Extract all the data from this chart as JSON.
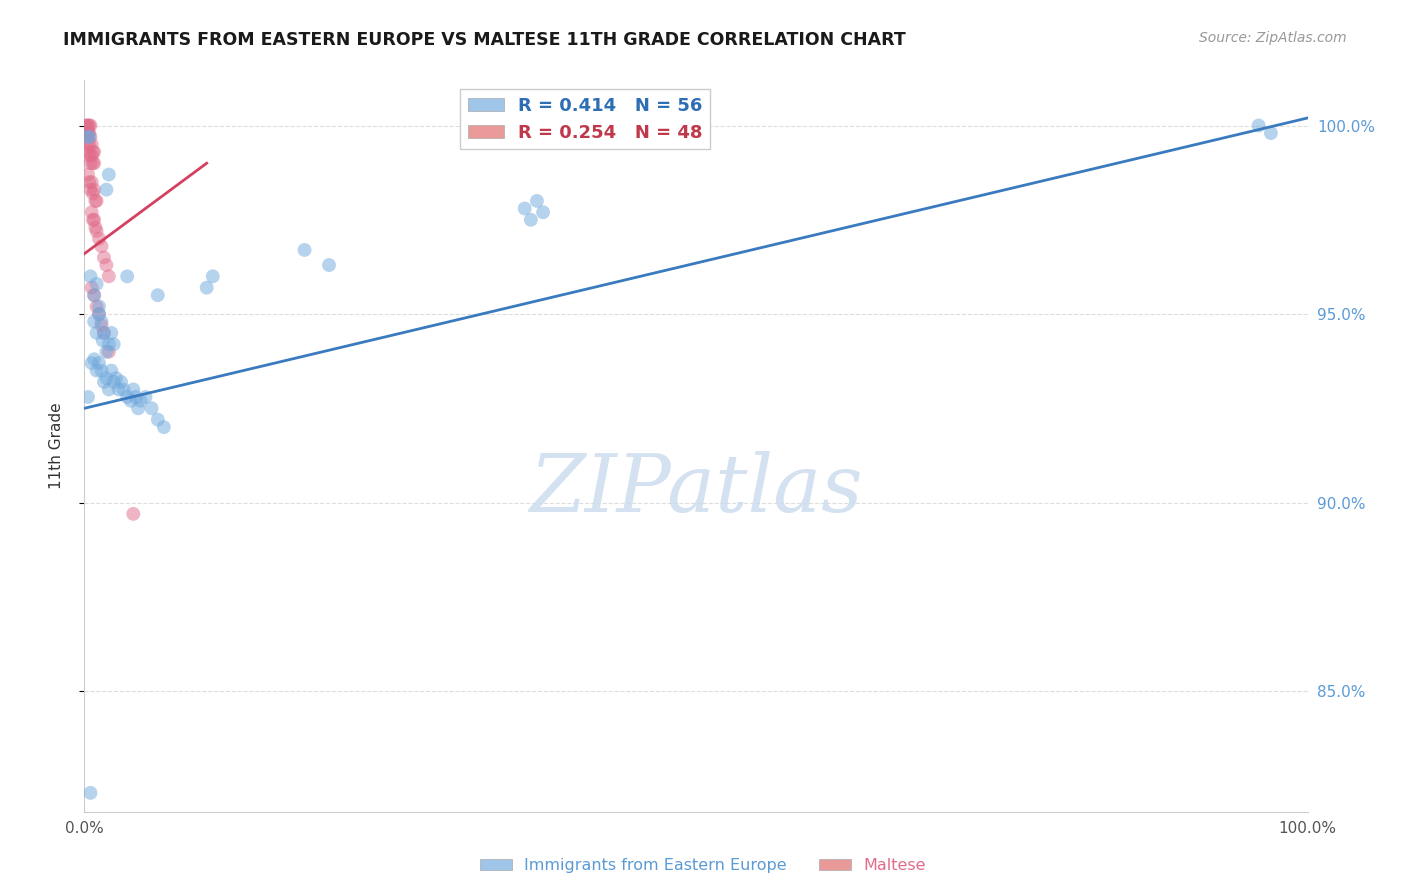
{
  "title": "IMMIGRANTS FROM EASTERN EUROPE VS MALTESE 11TH GRADE CORRELATION CHART",
  "source": "Source: ZipAtlas.com",
  "ylabel": "11th Grade",
  "legend_color1": "#9fc5e8",
  "legend_color2": "#ea9999",
  "blue_color": "#6fa8dc",
  "pink_color": "#e06c8a",
  "blue_scatter": [
    [
      0.003,
      0.997
    ],
    [
      0.004,
      0.997
    ],
    [
      0.018,
      0.983
    ],
    [
      0.02,
      0.987
    ],
    [
      0.005,
      0.96
    ],
    [
      0.008,
      0.955
    ],
    [
      0.01,
      0.958
    ],
    [
      0.012,
      0.952
    ],
    [
      0.008,
      0.948
    ],
    [
      0.01,
      0.945
    ],
    [
      0.012,
      0.95
    ],
    [
      0.014,
      0.948
    ],
    [
      0.015,
      0.943
    ],
    [
      0.016,
      0.945
    ],
    [
      0.018,
      0.94
    ],
    [
      0.02,
      0.942
    ],
    [
      0.022,
      0.945
    ],
    [
      0.024,
      0.942
    ],
    [
      0.006,
      0.937
    ],
    [
      0.008,
      0.938
    ],
    [
      0.01,
      0.935
    ],
    [
      0.012,
      0.937
    ],
    [
      0.014,
      0.935
    ],
    [
      0.016,
      0.932
    ],
    [
      0.018,
      0.933
    ],
    [
      0.02,
      0.93
    ],
    [
      0.022,
      0.935
    ],
    [
      0.024,
      0.932
    ],
    [
      0.026,
      0.933
    ],
    [
      0.028,
      0.93
    ],
    [
      0.03,
      0.932
    ],
    [
      0.032,
      0.93
    ],
    [
      0.035,
      0.928
    ],
    [
      0.038,
      0.927
    ],
    [
      0.04,
      0.93
    ],
    [
      0.042,
      0.928
    ],
    [
      0.044,
      0.925
    ],
    [
      0.046,
      0.927
    ],
    [
      0.05,
      0.928
    ],
    [
      0.055,
      0.925
    ],
    [
      0.06,
      0.922
    ],
    [
      0.065,
      0.92
    ],
    [
      0.035,
      0.96
    ],
    [
      0.06,
      0.955
    ],
    [
      0.1,
      0.957
    ],
    [
      0.105,
      0.96
    ],
    [
      0.18,
      0.967
    ],
    [
      0.2,
      0.963
    ],
    [
      0.36,
      0.978
    ],
    [
      0.365,
      0.975
    ],
    [
      0.37,
      0.98
    ],
    [
      0.375,
      0.977
    ],
    [
      0.96,
      1.0
    ],
    [
      0.97,
      0.998
    ],
    [
      0.005,
      0.823
    ],
    [
      0.003,
      0.928
    ]
  ],
  "pink_scatter": [
    [
      0.001,
      1.0
    ],
    [
      0.002,
      1.0
    ],
    [
      0.003,
      1.0
    ],
    [
      0.001,
      0.998
    ],
    [
      0.002,
      0.998
    ],
    [
      0.003,
      0.998
    ],
    [
      0.004,
      1.0
    ],
    [
      0.004,
      0.998
    ],
    [
      0.004,
      0.995
    ],
    [
      0.005,
      1.0
    ],
    [
      0.005,
      0.997
    ],
    [
      0.002,
      0.995
    ],
    [
      0.003,
      0.993
    ],
    [
      0.004,
      0.992
    ],
    [
      0.005,
      0.99
    ],
    [
      0.006,
      0.995
    ],
    [
      0.006,
      0.992
    ],
    [
      0.007,
      0.993
    ],
    [
      0.007,
      0.99
    ],
    [
      0.008,
      0.993
    ],
    [
      0.008,
      0.99
    ],
    [
      0.003,
      0.987
    ],
    [
      0.004,
      0.985
    ],
    [
      0.005,
      0.983
    ],
    [
      0.006,
      0.985
    ],
    [
      0.007,
      0.982
    ],
    [
      0.008,
      0.983
    ],
    [
      0.009,
      0.98
    ],
    [
      0.01,
      0.98
    ],
    [
      0.006,
      0.977
    ],
    [
      0.007,
      0.975
    ],
    [
      0.008,
      0.975
    ],
    [
      0.009,
      0.973
    ],
    [
      0.01,
      0.972
    ],
    [
      0.012,
      0.97
    ],
    [
      0.014,
      0.968
    ],
    [
      0.016,
      0.965
    ],
    [
      0.018,
      0.963
    ],
    [
      0.02,
      0.96
    ],
    [
      0.006,
      0.957
    ],
    [
      0.008,
      0.955
    ],
    [
      0.01,
      0.952
    ],
    [
      0.012,
      0.95
    ],
    [
      0.014,
      0.947
    ],
    [
      0.016,
      0.945
    ],
    [
      0.02,
      0.94
    ],
    [
      0.04,
      0.897
    ]
  ],
  "blue_trend_x": [
    0.0,
    1.0
  ],
  "blue_trend_y": [
    0.925,
    1.002
  ],
  "pink_trend_x": [
    0.0,
    0.1
  ],
  "pink_trend_y": [
    0.966,
    0.99
  ],
  "xlim": [
    0.0,
    1.0
  ],
  "ylim": [
    0.818,
    1.012
  ],
  "ytick_vals": [
    0.85,
    0.9,
    0.95,
    1.0
  ],
  "ytick_labels": [
    "85.0%",
    "90.0%",
    "95.0%",
    "100.0%"
  ],
  "xtick_vals": [
    0.0,
    0.1,
    0.2,
    0.3,
    0.4,
    0.5,
    0.6,
    0.7,
    0.8,
    0.9,
    1.0
  ],
  "grid_color": "#dddddd",
  "watermark_text": "ZIPatlas",
  "watermark_zip_color": "#c8d8ee",
  "watermark_atlas_color": "#c8d8ee"
}
